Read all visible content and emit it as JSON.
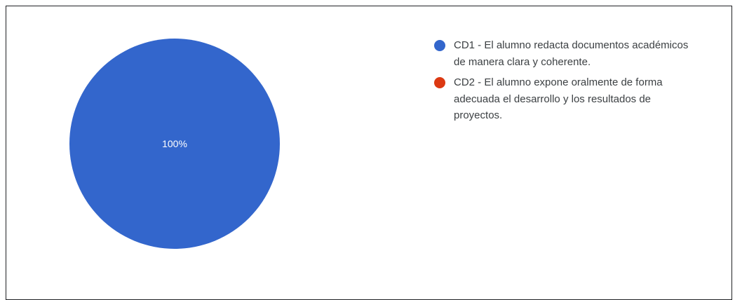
{
  "chart_data": {
    "type": "pie",
    "categories": [
      "CD1 - El alumno redacta documentos académicos de manera clara y coherente.",
      "CD2 - El alumno expone oralmente de forma adecuada el desarrollo y los resultados de proyectos."
    ],
    "values": [
      100,
      0
    ],
    "colors": [
      "#3366cc",
      "#dc3912"
    ],
    "slice_labels": [
      "100%",
      ""
    ],
    "title": "",
    "legend_position": "right"
  }
}
